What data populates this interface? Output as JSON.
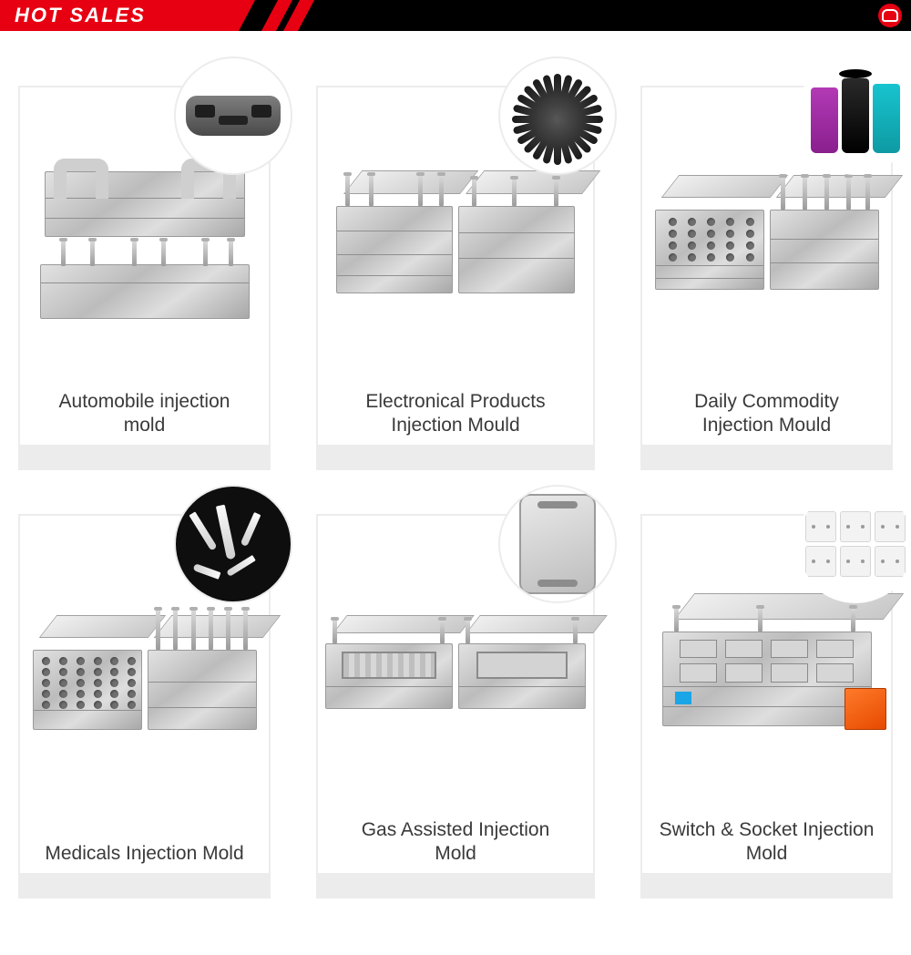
{
  "header": {
    "title": "HOT SALES"
  },
  "colors": {
    "accent_red": "#e60012",
    "header_bg": "#000000",
    "card_border": "#ececec",
    "caption_text": "#3a3a3a"
  },
  "products": [
    {
      "label_line1": "Automobile injection",
      "label_line2": "mold",
      "thumb": "bumper",
      "thumb_name": "car-bumper-icon"
    },
    {
      "label_line1": "Electronical Products",
      "label_line2": "Injection Mould",
      "thumb": "fan",
      "thumb_name": "cooling-fan-icon"
    },
    {
      "label_line1": "Daily Commodity",
      "label_line2": "Injection Mould",
      "thumb": "cups",
      "thumb_name": "containers-icon"
    },
    {
      "label_line1": "Medicals Injection Mold",
      "label_line2": "",
      "thumb": "tips",
      "thumb_name": "pipette-tips-icon"
    },
    {
      "label_line1": "Gas Assisted Injection",
      "label_line2": "Mold",
      "thumb": "panel",
      "thumb_name": "plastic-panel-icon"
    },
    {
      "label_line1": "Switch & Socket Injection",
      "label_line2": "Mold",
      "thumb": "sockets",
      "thumb_name": "wall-sockets-icon"
    }
  ]
}
